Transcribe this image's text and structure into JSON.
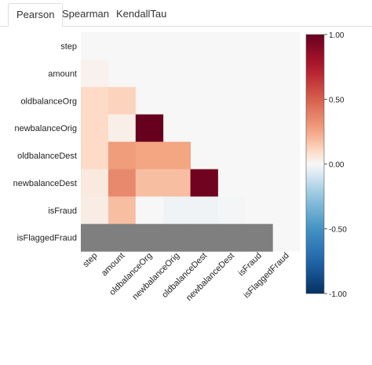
{
  "tabs": [
    {
      "label": "Pearson",
      "active": true
    },
    {
      "label": "Spearman",
      "active": false
    },
    {
      "label": "KendallTau",
      "active": false
    }
  ],
  "chart_data": {
    "type": "heatmap",
    "variables": [
      "step",
      "amount",
      "oldbalanceOrg",
      "newbalanceOrig",
      "oldbalanceDest",
      "newbalanceDest",
      "isFraud",
      "isFlaggedFraud"
    ],
    "matrix": [
      [
        null,
        null,
        null,
        null,
        null,
        null,
        null,
        null
      ],
      [
        0.02,
        null,
        null,
        null,
        null,
        null,
        null,
        null
      ],
      [
        0.1,
        0.12,
        null,
        null,
        null,
        null,
        null,
        null
      ],
      [
        0.1,
        0.03,
        1.0,
        null,
        null,
        null,
        null,
        null
      ],
      [
        0.1,
        0.28,
        0.25,
        0.25,
        null,
        null,
        null,
        null
      ],
      [
        0.05,
        0.35,
        0.18,
        0.18,
        0.97,
        null,
        null,
        null
      ],
      [
        0.04,
        0.18,
        0.0,
        -0.02,
        -0.02,
        -0.01,
        null,
        null
      ],
      [
        "nan",
        "nan",
        "nan",
        "nan",
        "nan",
        "nan",
        "nan",
        null
      ]
    ],
    "colorbar": {
      "min": -1.0,
      "max": 1.0,
      "ticks": [
        "1.00",
        "0.50",
        "0.00",
        "-0.50",
        "-1.00"
      ],
      "colormap": "RdBu_r"
    },
    "missing_color": "#7f7f7f",
    "masked_color": "#f7f7f7"
  }
}
